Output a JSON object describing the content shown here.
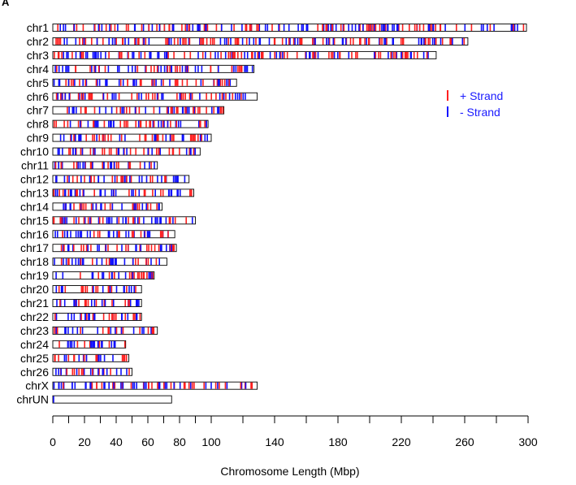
{
  "panel_label": "A",
  "chart_data": {
    "type": "chromosome-ideogram",
    "xlabel": "Chromosome Length (Mbp)",
    "xlim": [
      0,
      300
    ],
    "xticks": [
      0,
      20,
      40,
      60,
      80,
      100,
      140,
      180,
      220,
      260,
      300
    ],
    "xminor": [
      10,
      30,
      50,
      70,
      90,
      120,
      160,
      200,
      240,
      280
    ],
    "legend": {
      "position": "right",
      "entries": [
        {
          "label": "+ Strand",
          "color": "#ff2020"
        },
        {
          "label": "-  Strand",
          "color": "#1010ff"
        }
      ]
    },
    "text_color": "#1a1aff",
    "chromosomes": [
      {
        "name": "chr1",
        "length": 299
      },
      {
        "name": "chr2",
        "length": 262
      },
      {
        "name": "chr3",
        "length": 242
      },
      {
        "name": "chr4",
        "length": 127
      },
      {
        "name": "chr5",
        "length": 116
      },
      {
        "name": "chr6",
        "length": 129
      },
      {
        "name": "chr7",
        "length": 108
      },
      {
        "name": "chr8",
        "length": 98
      },
      {
        "name": "chr9",
        "length": 100
      },
      {
        "name": "chr10",
        "length": 93
      },
      {
        "name": "chr11",
        "length": 66
      },
      {
        "name": "chr12",
        "length": 86
      },
      {
        "name": "chr13",
        "length": 89
      },
      {
        "name": "chr14",
        "length": 69
      },
      {
        "name": "chr15",
        "length": 90
      },
      {
        "name": "chr16",
        "length": 77
      },
      {
        "name": "chr17",
        "length": 78
      },
      {
        "name": "chr18",
        "length": 72
      },
      {
        "name": "chr19",
        "length": 64
      },
      {
        "name": "chr20",
        "length": 56
      },
      {
        "name": "chr21",
        "length": 56
      },
      {
        "name": "chr22",
        "length": 56
      },
      {
        "name": "chr23",
        "length": 66
      },
      {
        "name": "chr24",
        "length": 46
      },
      {
        "name": "chr25",
        "length": 48
      },
      {
        "name": "chr26",
        "length": 50
      },
      {
        "name": "chrX",
        "length": 129
      },
      {
        "name": "chrUN",
        "length": 75
      }
    ]
  }
}
